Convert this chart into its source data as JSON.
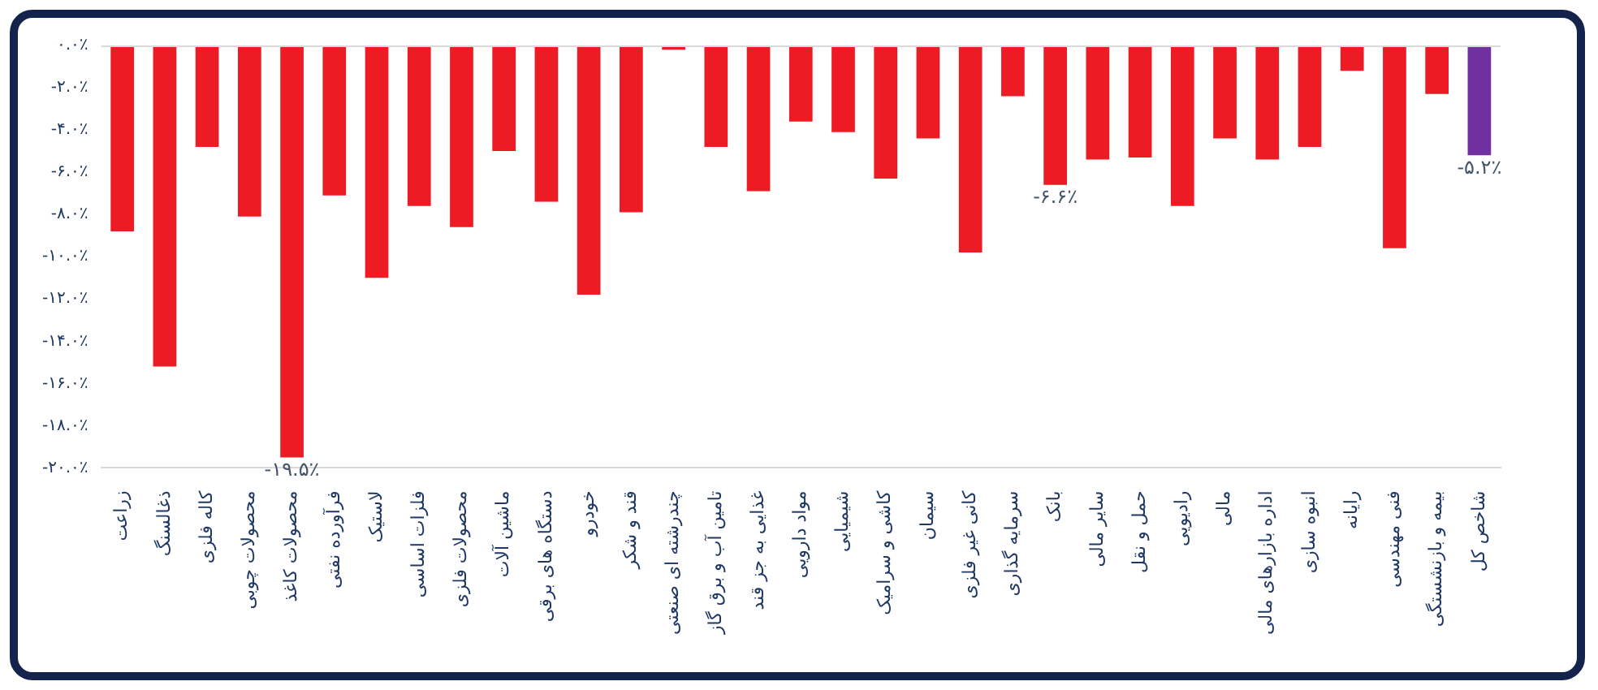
{
  "chart_data": {
    "type": "bar",
    "categories": [
      "زراعت",
      "ذغالسنگ",
      "کاله فلزی",
      "محصولات چوبی",
      "محصولات کاغذ",
      "فرآورده نفتی",
      "لاستیک",
      "فلزات اساسی",
      "محصولات فلزی",
      "ماشین آلات",
      "دستگاه های برقی",
      "خودرو",
      "قند و شکر",
      "چندرشته ای صنعتی",
      "تامین آب و برق گاز",
      "غذایی به جز قند",
      "مواد دارویی",
      "شیمیایی",
      "کاشی و سرامیک",
      "سیمان",
      "کانی غیر فلزی",
      "سرمایه گذاری",
      "بانک",
      "سایر مالی",
      "حمل و نقل",
      "رادیویی",
      "مالی",
      "اداره بازارهای مالی",
      "انبوه سازی",
      "رایانه",
      "فنی مهندسی",
      "بیمه و بازنشستگی",
      "شاخص کل"
    ],
    "values": [
      -8.8,
      -15.2,
      -4.8,
      -8.1,
      -19.5,
      -7.1,
      -11.0,
      -7.6,
      -8.6,
      -5.0,
      -7.4,
      -11.8,
      -7.9,
      -0.2,
      -4.8,
      -6.9,
      -3.6,
      -4.1,
      -6.3,
      -4.4,
      -9.8,
      -2.4,
      -6.6,
      -5.4,
      -5.3,
      -7.6,
      -4.4,
      -5.4,
      -4.8,
      -1.2,
      -9.6,
      -2.3,
      -5.2
    ],
    "colors": [
      "#ed1c24",
      "#ed1c24",
      "#ed1c24",
      "#ed1c24",
      "#ed1c24",
      "#ed1c24",
      "#ed1c24",
      "#ed1c24",
      "#ed1c24",
      "#ed1c24",
      "#ed1c24",
      "#ed1c24",
      "#ed1c24",
      "#ed1c24",
      "#ed1c24",
      "#ed1c24",
      "#ed1c24",
      "#ed1c24",
      "#ed1c24",
      "#ed1c24",
      "#ed1c24",
      "#ed1c24",
      "#ed1c24",
      "#ed1c24",
      "#ed1c24",
      "#ed1c24",
      "#ed1c24",
      "#ed1c24",
      "#ed1c24",
      "#ed1c24",
      "#ed1c24",
      "#ed1c24",
      "#7030a0"
    ],
    "value_labels": [
      null,
      null,
      null,
      null,
      "-۱۹.۵٪",
      null,
      null,
      null,
      null,
      null,
      null,
      null,
      null,
      null,
      null,
      null,
      null,
      null,
      null,
      null,
      null,
      null,
      "-۶.۶٪",
      null,
      null,
      null,
      null,
      null,
      null,
      null,
      null,
      null,
      "-۵.۲٪"
    ],
    "ylim": [
      -20,
      0
    ],
    "yticks": [
      {
        "value": 0,
        "label": "۰.۰٪"
      },
      {
        "value": -2,
        "label": "-۲.۰٪"
      },
      {
        "value": -4,
        "label": "-۴.۰٪"
      },
      {
        "value": -6,
        "label": "-۶.۰٪"
      },
      {
        "value": -8,
        "label": "-۸.۰٪"
      },
      {
        "value": -10,
        "label": "-۱۰.۰٪"
      },
      {
        "value": -12,
        "label": "-۱۲.۰٪"
      },
      {
        "value": -14,
        "label": "-۱۴.۰٪"
      },
      {
        "value": -16,
        "label": "-۱۶.۰٪"
      },
      {
        "value": -18,
        "label": "-۱۸.۰٪"
      },
      {
        "value": -20,
        "label": "-۲۰.۰٪"
      }
    ],
    "grid": false,
    "legend": false
  }
}
